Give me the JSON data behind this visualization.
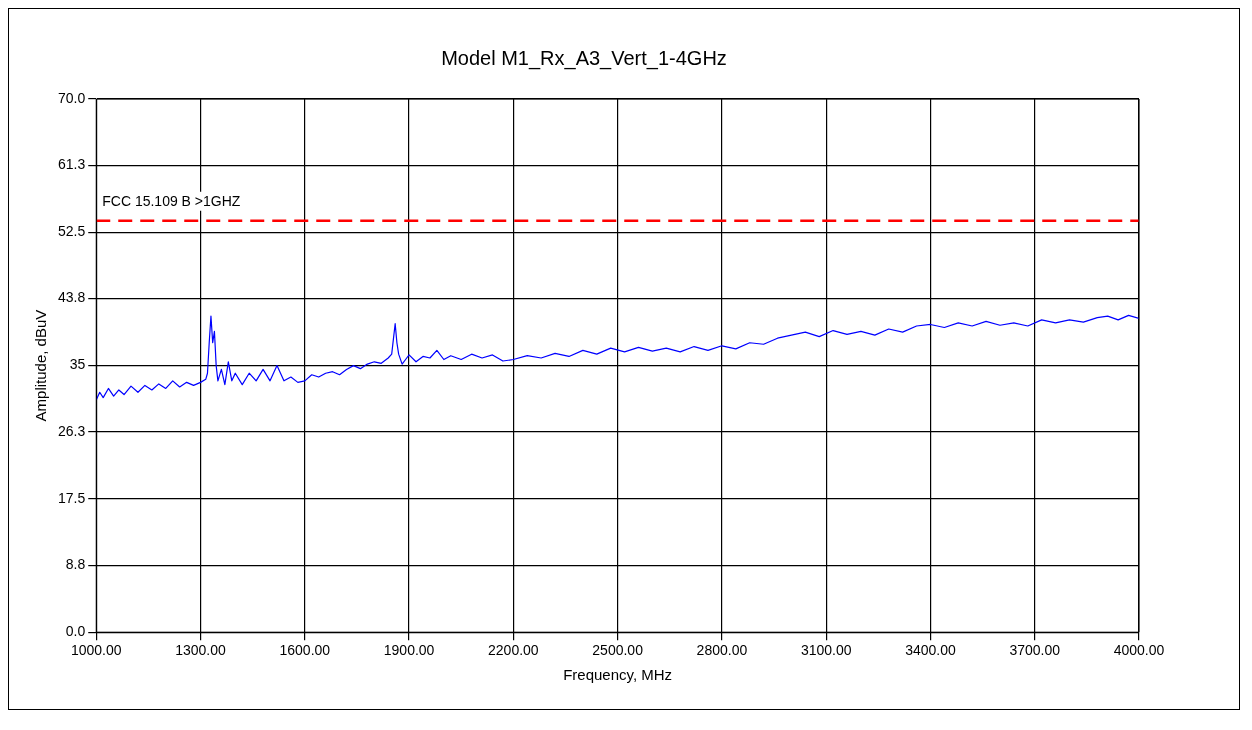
{
  "chart_data": {
    "type": "line",
    "title": "Model M1_Rx_A3_Vert_1-4GHz",
    "xlabel": "Frequency, MHz",
    "ylabel": "Amplitude, dBuV",
    "x": [
      1000,
      1010,
      1020,
      1035,
      1050,
      1065,
      1080,
      1100,
      1120,
      1140,
      1160,
      1180,
      1200,
      1220,
      1240,
      1260,
      1280,
      1300,
      1315,
      1320,
      1325,
      1330,
      1335,
      1340,
      1345,
      1350,
      1360,
      1370,
      1380,
      1390,
      1400,
      1420,
      1440,
      1460,
      1480,
      1500,
      1520,
      1540,
      1560,
      1580,
      1600,
      1620,
      1640,
      1660,
      1680,
      1700,
      1720,
      1740,
      1760,
      1780,
      1800,
      1820,
      1840,
      1850,
      1855,
      1860,
      1865,
      1870,
      1880,
      1890,
      1900,
      1920,
      1940,
      1960,
      1980,
      2000,
      2020,
      2050,
      2080,
      2110,
      2140,
      2170,
      2200,
      2240,
      2280,
      2320,
      2360,
      2400,
      2440,
      2480,
      2520,
      2560,
      2600,
      2640,
      2680,
      2720,
      2760,
      2800,
      2840,
      2880,
      2920,
      2960,
      3000,
      3040,
      3080,
      3120,
      3160,
      3200,
      3240,
      3280,
      3320,
      3360,
      3400,
      3440,
      3480,
      3520,
      3560,
      3600,
      3640,
      3680,
      3720,
      3760,
      3800,
      3840,
      3880,
      3910,
      3940,
      3970,
      4000
    ],
    "series": [
      {
        "color": "#0000ff",
        "values": [
          30.5,
          31.5,
          30.8,
          32,
          31,
          31.8,
          31.2,
          32.3,
          31.5,
          32.4,
          31.8,
          32.6,
          32,
          33,
          32.2,
          32.8,
          32.4,
          32.8,
          33.2,
          34,
          38,
          41.5,
          38,
          39.5,
          35,
          33,
          34.5,
          32.5,
          35.5,
          33,
          34,
          32.5,
          34,
          33,
          34.5,
          33,
          35,
          33,
          33.5,
          32.8,
          33,
          33.8,
          33.5,
          34,
          34.2,
          33.8,
          34.5,
          35,
          34.6,
          35.2,
          35.5,
          35.3,
          36,
          36.5,
          38.5,
          40.5,
          38,
          36.5,
          35.2,
          35.8,
          36.4,
          35.5,
          36.2,
          36,
          37,
          35.8,
          36.3,
          35.8,
          36.5,
          36,
          36.4,
          35.6,
          35.8,
          36.3,
          36,
          36.6,
          36.2,
          37,
          36.5,
          37.3,
          36.8,
          37.4,
          36.9,
          37.3,
          36.8,
          37.5,
          37,
          37.6,
          37.2,
          38,
          37.8,
          38.6,
          39,
          39.4,
          38.8,
          39.6,
          39.1,
          39.5,
          39,
          39.8,
          39.4,
          40.2,
          40.4,
          40,
          40.6,
          40.2,
          40.8,
          40.3,
          40.6,
          40.2,
          41,
          40.6,
          41,
          40.7,
          41.3,
          41.5,
          41,
          41.6,
          41.2
        ]
      }
    ],
    "xlim": [
      1000,
      4000
    ],
    "xticks": [
      {
        "value": 1000,
        "label": "1000.00"
      },
      {
        "value": 1300,
        "label": "1300.00"
      },
      {
        "value": 1600,
        "label": "1600.00"
      },
      {
        "value": 1900,
        "label": "1900.00"
      },
      {
        "value": 2200,
        "label": "2200.00"
      },
      {
        "value": 2500,
        "label": "2500.00"
      },
      {
        "value": 2800,
        "label": "2800.00"
      },
      {
        "value": 3100,
        "label": "3100.00"
      },
      {
        "value": 3400,
        "label": "3400.00"
      },
      {
        "value": 3700,
        "label": "3700.00"
      },
      {
        "value": 4000,
        "label": "4000.00"
      }
    ],
    "ylim": [
      0,
      70
    ],
    "yticks": [
      {
        "value": 0,
        "label": "0.0"
      },
      8.8,
      17.5,
      26.3,
      35,
      43.8,
      52.5,
      61.3,
      {
        "value": 70,
        "label": "70.0"
      }
    ],
    "grid": true,
    "marker": "none",
    "line_style": "solid",
    "ref_lines": [
      {
        "axis": "y",
        "value": 54,
        "label": "FCC 15.109 B >1GHZ",
        "color": "#ff0000",
        "line_style": "dashed"
      }
    ]
  }
}
